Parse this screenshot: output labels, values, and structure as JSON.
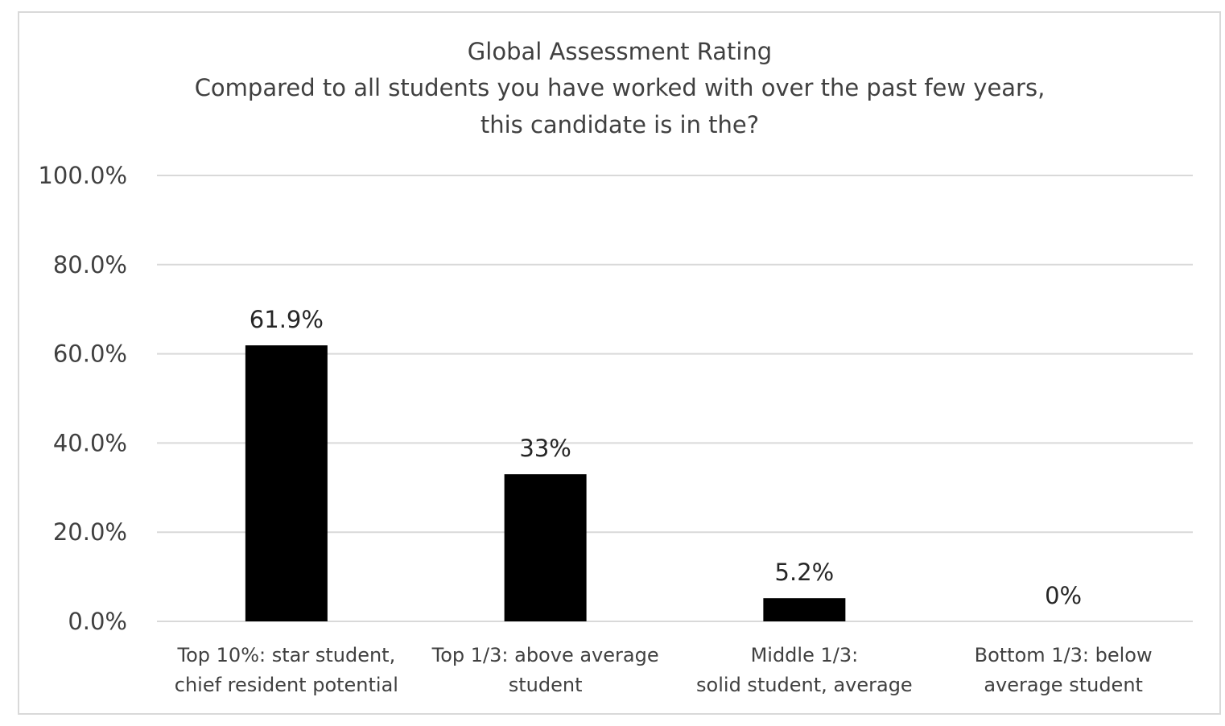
{
  "chart_data": {
    "type": "bar",
    "title": [
      "Global Assessment Rating",
      "Compared to all students you have worked with over the past few years,",
      "this candidate is in the?"
    ],
    "categories": [
      [
        "Top 10%: star student,",
        "chief resident potential"
      ],
      [
        "Top 1/3: above average",
        "student"
      ],
      [
        "Middle 1/3:",
        "solid student, average"
      ],
      [
        "Bottom 1/3: below",
        "average student"
      ]
    ],
    "values": [
      61.9,
      33,
      5.2,
      0
    ],
    "data_labels": [
      "61.9%",
      "33%",
      "5.2%",
      "0%"
    ],
    "y_ticks": [
      0,
      20,
      40,
      60,
      80,
      100
    ],
    "y_tick_labels": [
      "0.0%",
      "20.0%",
      "40.0%",
      "60.0%",
      "80.0%",
      "100.0%"
    ],
    "ylim": [
      0,
      100
    ],
    "grid": true,
    "legend": "none",
    "xlabel": "",
    "ylabel": "",
    "colors": {
      "bar": "#000000",
      "grid": "#d9d9d9",
      "axis": "#d9d9d9",
      "text": "#404040",
      "border": "#d9d9d9"
    }
  }
}
